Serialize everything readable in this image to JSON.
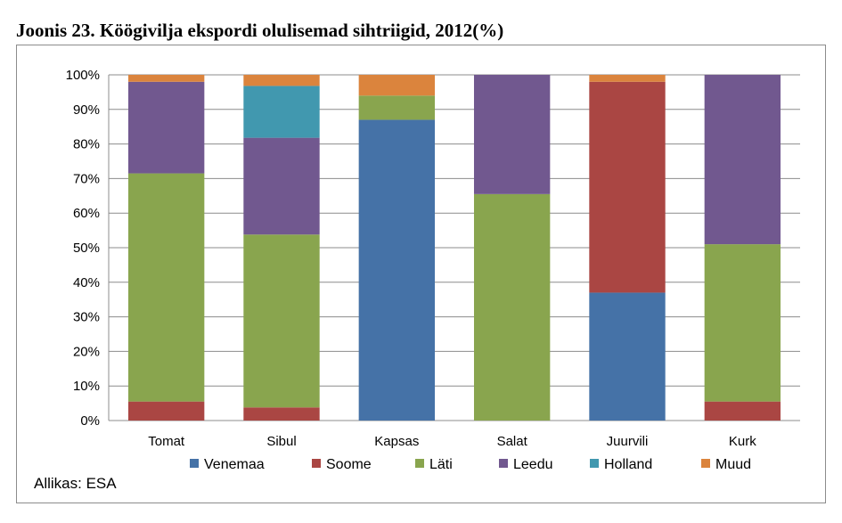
{
  "title": "Joonis 23. Köögivilja ekspordi olulisemad sihtriigid, 2012(%)",
  "source": "Allikas: ESA",
  "chart_data": {
    "type": "bar",
    "stacked": true,
    "title": "Joonis 23. Köögivilja ekspordi olulisemad sihtriigid, 2012(%)",
    "xlabel": "",
    "ylabel": "",
    "ylim": [
      0,
      100
    ],
    "yticks": [
      "0%",
      "10%",
      "20%",
      "30%",
      "40%",
      "50%",
      "60%",
      "70%",
      "80%",
      "90%",
      "100%"
    ],
    "grid": true,
    "legend": "bottom",
    "categories": [
      "Tomat",
      "Sibul",
      "Kapsas",
      "Salat",
      "Juurvili",
      "Kurk"
    ],
    "series": [
      {
        "name": "Venemaa",
        "color": "#4572A7",
        "values": [
          0,
          0,
          87,
          0,
          37,
          0
        ]
      },
      {
        "name": "Soome",
        "color": "#AA4643",
        "values": [
          5.5,
          3.8,
          0,
          0,
          61,
          5.5
        ]
      },
      {
        "name": "Läti",
        "color": "#89A54E",
        "values": [
          66,
          50,
          7,
          65.5,
          0,
          45.5
        ]
      },
      {
        "name": "Leedu",
        "color": "#71588F",
        "values": [
          26.5,
          28,
          0,
          34.5,
          0,
          49
        ]
      },
      {
        "name": "Holland",
        "color": "#4198AF",
        "values": [
          0,
          15,
          0,
          0,
          0,
          0
        ]
      },
      {
        "name": "Muud",
        "color": "#DB843D",
        "values": [
          2,
          3.2,
          6,
          0,
          2,
          0
        ]
      }
    ]
  }
}
